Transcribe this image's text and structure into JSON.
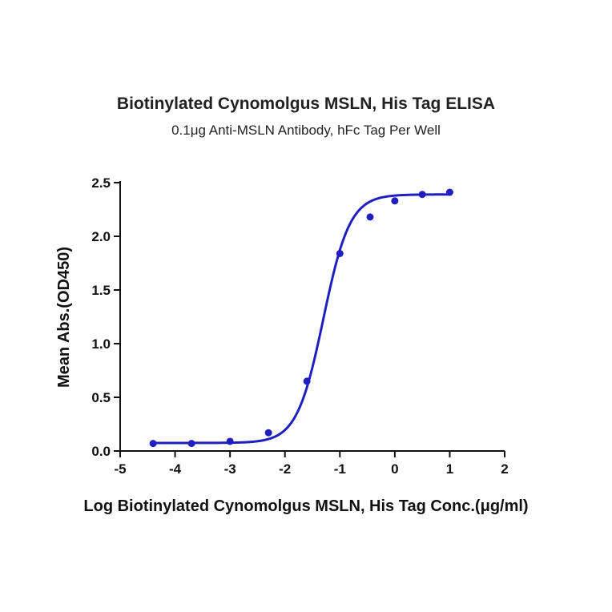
{
  "chart_data": {
    "type": "scatter",
    "title": "Biotinylated Cynomolgus MSLN, His Tag ELISA",
    "subtitle": "0.1μg Anti-MSLN Antibody, hFc Tag Per Well",
    "xlabel": "Log Biotinylated Cynomolgus MSLN, His Tag Conc.(μg/ml)",
    "ylabel": "Mean Abs.(OD450)",
    "xlim": [
      -5,
      2
    ],
    "ylim": [
      0,
      2.5
    ],
    "x_ticks": [
      -5,
      -4,
      -3,
      -2,
      -1,
      0,
      1,
      2
    ],
    "y_ticks": [
      0.0,
      0.5,
      1.0,
      1.5,
      2.0,
      2.5
    ],
    "x_tick_labels": [
      "-5",
      "-4",
      "-3",
      "-2",
      "-1",
      "0",
      "1",
      "2"
    ],
    "y_tick_labels": [
      "0.0",
      "0.5",
      "1.0",
      "1.5",
      "2.0",
      "2.5"
    ],
    "grid": false,
    "color": "#1f1fbf",
    "series": [
      {
        "x": [
          -4.4,
          -3.7,
          -3.0,
          -2.3,
          -1.6,
          -1.0,
          -0.45,
          0.0,
          0.5,
          1.0
        ],
        "y": [
          0.07,
          0.07,
          0.09,
          0.17,
          0.65,
          1.84,
          2.18,
          2.33,
          2.39,
          2.41
        ],
        "fit": {
          "model": "4PL",
          "bottom": 0.075,
          "top": 2.39,
          "log_ec50": -1.3,
          "hill_slope": 1.8,
          "x_range": [
            -4.4,
            1.0
          ]
        }
      }
    ]
  }
}
